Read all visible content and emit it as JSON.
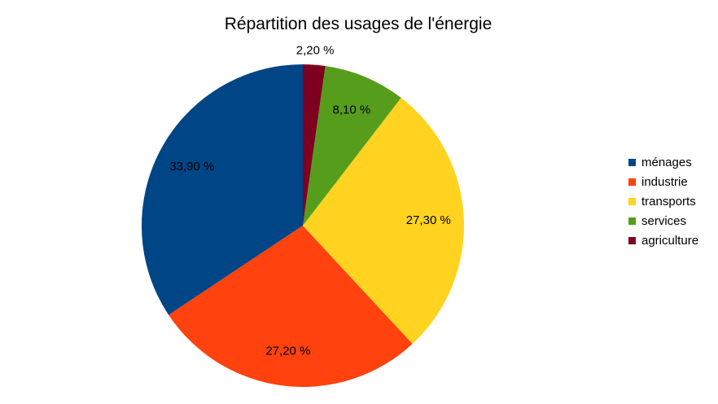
{
  "chart_data": {
    "type": "pie",
    "title": "Répartition des usages de l'énergie",
    "categories": [
      "ménages",
      "industrie",
      "transports",
      "services",
      "agriculture"
    ],
    "values": [
      33.9,
      27.2,
      27.3,
      8.1,
      2.2
    ],
    "labels": [
      "33,90 %",
      "27,20 %",
      "27,30 %",
      "8,10 %",
      "2,20 %"
    ],
    "colors": [
      "#004586",
      "#ff420e",
      "#ffd320",
      "#579d1c",
      "#7e0021"
    ],
    "legend_position": "right",
    "start": "top, counter-clockwise"
  }
}
